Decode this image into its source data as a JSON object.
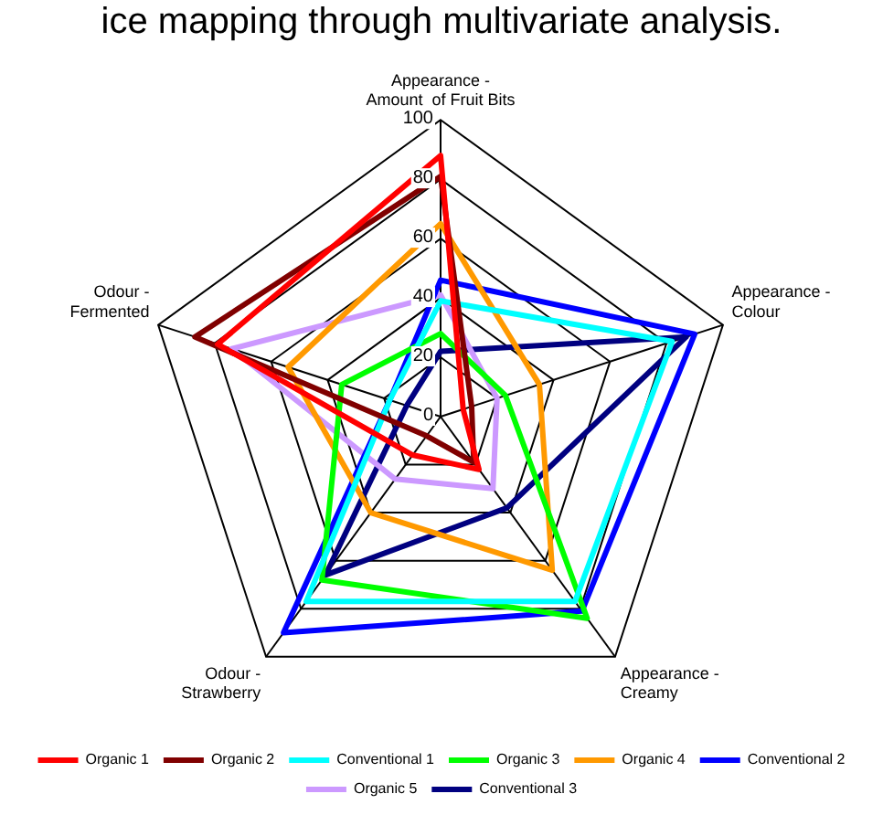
{
  "chart_data": {
    "type": "radar",
    "title": "ice mapping through multivariate analysis.",
    "categories": [
      "Appearance - Amount  of Fruit Bits",
      "Appearance - Colour",
      "Appearance - Creamy",
      "Odour - Strawberry",
      "Odour - Fermented"
    ],
    "series": [
      {
        "name": "Organic 1",
        "color": "#ff0000",
        "values": [
          88,
          8,
          22,
          16,
          79
        ]
      },
      {
        "name": "Organic 2",
        "color": "#800000",
        "values": [
          81,
          11,
          19,
          8,
          87
        ]
      },
      {
        "name": "Conventional 1",
        "color": "#00ffff",
        "values": [
          39,
          82,
          77,
          77,
          18
        ]
      },
      {
        "name": "Organic 3",
        "color": "#00ff00",
        "values": [
          28,
          23,
          84,
          68,
          35
        ]
      },
      {
        "name": "Organic 4",
        "color": "#ff9900",
        "values": [
          65,
          35,
          64,
          40,
          54
        ]
      },
      {
        "name": "Conventional 2",
        "color": "#0000ff",
        "values": [
          46,
          90,
          81,
          90,
          18
        ]
      },
      {
        "name": "Organic 5",
        "color": "#cc99ff",
        "values": [
          41,
          20,
          30,
          26,
          74
        ]
      },
      {
        "name": "Conventional 3",
        "color": "#000080",
        "values": [
          22,
          87,
          38,
          66,
          12
        ]
      }
    ],
    "ylim": [
      0,
      100
    ],
    "yticks": [
      0,
      20,
      40,
      60,
      80,
      100
    ],
    "grid": true,
    "legend": "bottom",
    "marker": "none"
  }
}
